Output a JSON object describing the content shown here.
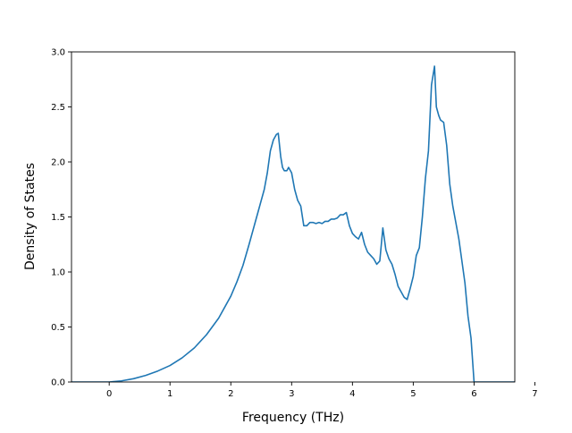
{
  "chart_data": {
    "type": "line",
    "xlabel": "Frequency (THz)",
    "ylabel": "Density of States",
    "xlim": [
      -0.62,
      6.67
    ],
    "ylim": [
      0.0,
      3.0
    ],
    "xticks": [
      0,
      1,
      2,
      3,
      4,
      5,
      6,
      7
    ],
    "yticks": [
      0.0,
      0.5,
      1.0,
      1.5,
      2.0,
      2.5,
      3.0
    ],
    "xtick_labels": [
      "0",
      "1",
      "2",
      "3",
      "4",
      "5",
      "6",
      "7"
    ],
    "ytick_labels": [
      "0.0",
      "0.5",
      "1.0",
      "1.5",
      "2.0",
      "2.5",
      "3.0"
    ],
    "grid": false,
    "line_color": "#1f77b4",
    "series": [
      {
        "x": [
          -0.62,
          0.0,
          0.2,
          0.4,
          0.6,
          0.8,
          1.0,
          1.2,
          1.4,
          1.6,
          1.8,
          2.0,
          2.1,
          2.2,
          2.3,
          2.4,
          2.45,
          2.5,
          2.55,
          2.6,
          2.65,
          2.7,
          2.75,
          2.78,
          2.82,
          2.85,
          2.88,
          2.92,
          2.95,
          3.0,
          3.05,
          3.1,
          3.15,
          3.2,
          3.25,
          3.3,
          3.35,
          3.4,
          3.45,
          3.5,
          3.55,
          3.6,
          3.65,
          3.7,
          3.75,
          3.8,
          3.85,
          3.9,
          3.95,
          4.0,
          4.05,
          4.1,
          4.15,
          4.2,
          4.25,
          4.3,
          4.35,
          4.4,
          4.45,
          4.5,
          4.55,
          4.6,
          4.65,
          4.7,
          4.75,
          4.8,
          4.85,
          4.9,
          4.95,
          5.0,
          5.05,
          5.1,
          5.15,
          5.2,
          5.25,
          5.3,
          5.35,
          5.38,
          5.42,
          5.45,
          5.5,
          5.55,
          5.6,
          5.65,
          5.7,
          5.75,
          5.8,
          5.85,
          5.9,
          5.95,
          6.0,
          6.05,
          6.1,
          6.3,
          6.67
        ],
        "y": [
          0.0,
          0.0,
          0.01,
          0.03,
          0.06,
          0.1,
          0.15,
          0.22,
          0.31,
          0.43,
          0.58,
          0.78,
          0.91,
          1.06,
          1.25,
          1.45,
          1.55,
          1.65,
          1.75,
          1.9,
          2.1,
          2.2,
          2.25,
          2.26,
          2.05,
          1.95,
          1.92,
          1.92,
          1.95,
          1.9,
          1.75,
          1.65,
          1.6,
          1.42,
          1.42,
          1.45,
          1.45,
          1.44,
          1.45,
          1.44,
          1.46,
          1.46,
          1.48,
          1.48,
          1.49,
          1.52,
          1.52,
          1.54,
          1.42,
          1.35,
          1.32,
          1.3,
          1.36,
          1.25,
          1.18,
          1.15,
          1.12,
          1.07,
          1.1,
          1.4,
          1.2,
          1.12,
          1.07,
          0.98,
          0.87,
          0.82,
          0.77,
          0.75,
          0.85,
          0.96,
          1.15,
          1.22,
          1.5,
          1.85,
          2.1,
          2.7,
          2.87,
          2.5,
          2.42,
          2.38,
          2.36,
          2.15,
          1.8,
          1.6,
          1.45,
          1.3,
          1.1,
          0.9,
          0.6,
          0.4,
          0.0,
          0.0,
          0.0,
          0.0,
          0.0
        ]
      }
    ]
  }
}
